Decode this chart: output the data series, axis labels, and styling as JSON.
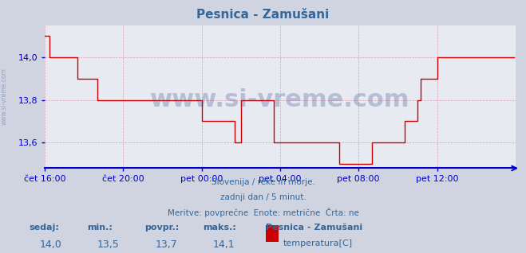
{
  "title": "Pesnica - Zamušani",
  "bg_color": "#d0d4e0",
  "plot_bg_color": "#e8eaf2",
  "line_color": "#cc0000",
  "axis_color": "#0000cc",
  "grid_color": "#dd99aa",
  "text_color": "#336699",
  "title_color": "#336699",
  "ylim": [
    13.48,
    14.15
  ],
  "yticks": [
    13.6,
    13.8,
    14.0
  ],
  "xtick_labels": [
    "čet 16:00",
    "čet 20:00",
    "pet 00:00",
    "pet 04:00",
    "pet 08:00",
    "pet 12:00"
  ],
  "xtick_positions": [
    0,
    48,
    96,
    144,
    192,
    240
  ],
  "total_points": 288,
  "subtitle_lines": [
    "Slovenija / reke in morje.",
    "zadnji dan / 5 minut.",
    "Meritve: povprečne  Enote: metrične  Črta: ne"
  ],
  "bottom_labels": [
    "sedaj:",
    "min.:",
    "povpr.:",
    "maks.:"
  ],
  "bottom_values": [
    "14,0",
    "13,5",
    "13,7",
    "14,1"
  ],
  "station_name": "Pesnica - Zamušani",
  "legend_label": "temperatura[C]",
  "legend_color": "#cc0000",
  "temperature_data": [
    14.1,
    14.1,
    14.1,
    14.0,
    14.0,
    14.0,
    14.0,
    14.0,
    14.0,
    14.0,
    14.0,
    14.0,
    14.0,
    14.0,
    14.0,
    14.0,
    14.0,
    14.0,
    14.0,
    14.0,
    13.9,
    13.9,
    13.9,
    13.9,
    13.9,
    13.9,
    13.9,
    13.9,
    13.9,
    13.9,
    13.9,
    13.9,
    13.8,
    13.8,
    13.8,
    13.8,
    13.8,
    13.8,
    13.8,
    13.8,
    13.8,
    13.8,
    13.8,
    13.8,
    13.8,
    13.8,
    13.8,
    13.8,
    13.8,
    13.8,
    13.8,
    13.8,
    13.8,
    13.8,
    13.8,
    13.8,
    13.8,
    13.8,
    13.8,
    13.8,
    13.8,
    13.8,
    13.8,
    13.8,
    13.8,
    13.8,
    13.8,
    13.8,
    13.8,
    13.8,
    13.8,
    13.8,
    13.8,
    13.8,
    13.8,
    13.8,
    13.8,
    13.8,
    13.8,
    13.8,
    13.8,
    13.8,
    13.8,
    13.8,
    13.8,
    13.8,
    13.8,
    13.8,
    13.8,
    13.8,
    13.8,
    13.8,
    13.8,
    13.8,
    13.8,
    13.8,
    13.7,
    13.7,
    13.7,
    13.7,
    13.7,
    13.7,
    13.7,
    13.7,
    13.7,
    13.7,
    13.7,
    13.7,
    13.7,
    13.7,
    13.7,
    13.7,
    13.7,
    13.7,
    13.7,
    13.7,
    13.6,
    13.6,
    13.6,
    13.6,
    13.8,
    13.8,
    13.8,
    13.8,
    13.8,
    13.8,
    13.8,
    13.8,
    13.8,
    13.8,
    13.8,
    13.8,
    13.8,
    13.8,
    13.8,
    13.8,
    13.8,
    13.8,
    13.8,
    13.8,
    13.6,
    13.6,
    13.6,
    13.6,
    13.6,
    13.6,
    13.6,
    13.6,
    13.6,
    13.6,
    13.6,
    13.6,
    13.6,
    13.6,
    13.6,
    13.6,
    13.6,
    13.6,
    13.6,
    13.6,
    13.6,
    13.6,
    13.6,
    13.6,
    13.6,
    13.6,
    13.6,
    13.6,
    13.6,
    13.6,
    13.6,
    13.6,
    13.6,
    13.6,
    13.6,
    13.6,
    13.6,
    13.6,
    13.6,
    13.6,
    13.5,
    13.5,
    13.5,
    13.5,
    13.5,
    13.5,
    13.5,
    13.5,
    13.5,
    13.5,
    13.5,
    13.5,
    13.5,
    13.5,
    13.5,
    13.5,
    13.5,
    13.5,
    13.5,
    13.5,
    13.6,
    13.6,
    13.6,
    13.6,
    13.6,
    13.6,
    13.6,
    13.6,
    13.6,
    13.6,
    13.6,
    13.6,
    13.6,
    13.6,
    13.6,
    13.6,
    13.6,
    13.6,
    13.6,
    13.6,
    13.7,
    13.7,
    13.7,
    13.7,
    13.7,
    13.7,
    13.7,
    13.7,
    13.8,
    13.8,
    13.9,
    13.9,
    13.9,
    13.9,
    13.9,
    13.9,
    13.9,
    13.9,
    13.9,
    13.9,
    14.0,
    14.0,
    14.0,
    14.0,
    14.0,
    14.0,
    14.0,
    14.0,
    14.0,
    14.0,
    14.0,
    14.0,
    14.0,
    14.0,
    14.0,
    14.0,
    14.0,
    14.0,
    14.0,
    14.0,
    14.0,
    14.0,
    14.0,
    14.0,
    14.0,
    14.0,
    14.0,
    14.0,
    14.0,
    14.0,
    14.0,
    14.0,
    14.0,
    14.0,
    14.0,
    14.0,
    14.0,
    14.0,
    14.0,
    14.0,
    14.0,
    14.0,
    14.0,
    14.0,
    14.0,
    14.0,
    14.0,
    14.0
  ]
}
